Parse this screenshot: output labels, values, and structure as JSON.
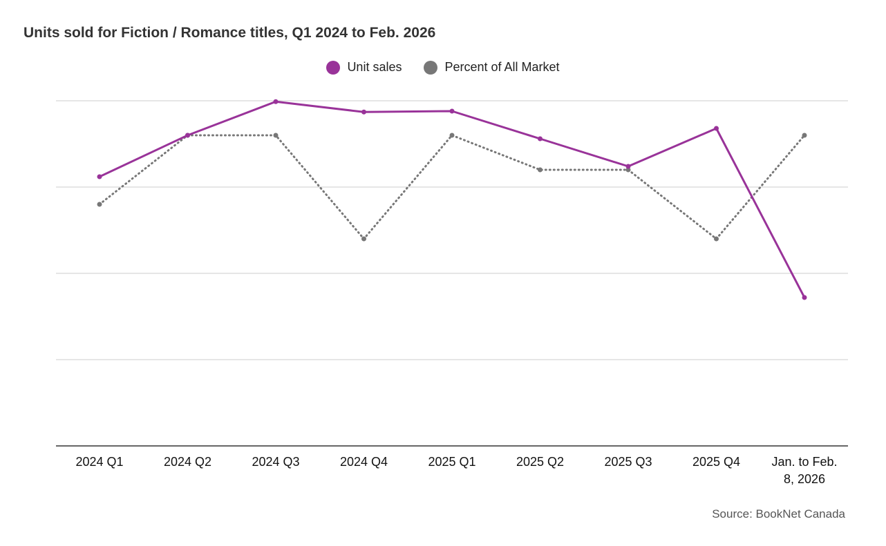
{
  "chart_data": {
    "type": "line",
    "title": "Units sold for Fiction / Romance titles, Q1 2024 to Feb. 2026",
    "categories": [
      "2024 Q1",
      "2024 Q2",
      "2024 Q3",
      "2024 Q4",
      "2025 Q1",
      "2025 Q2",
      "2025 Q3",
      "2025 Q4",
      "Jan. to Feb. 8, 2026"
    ],
    "category_lines": [
      [
        "2024 Q1"
      ],
      [
        "2024 Q2"
      ],
      [
        "2024 Q3"
      ],
      [
        "2024 Q4"
      ],
      [
        "2025 Q1"
      ],
      [
        "2025 Q2"
      ],
      [
        "2025 Q3"
      ],
      [
        "2025 Q4"
      ],
      [
        "Jan. to Feb.",
        "8, 2026"
      ]
    ],
    "ylim": [
      0,
      4
    ],
    "gridlines": [
      1,
      2,
      3,
      4
    ],
    "y_ticks_labeled": false,
    "grid": true,
    "legend_position": "top-center",
    "series": [
      {
        "name": "Unit sales",
        "color": "#993399",
        "style": "solid",
        "values": [
          3.12,
          3.6,
          3.99,
          3.87,
          3.88,
          3.56,
          3.24,
          3.68,
          1.72
        ]
      },
      {
        "name": "Percent of All Market",
        "color": "#777777",
        "style": "dotted",
        "values": [
          2.8,
          3.6,
          3.6,
          2.4,
          3.6,
          3.2,
          3.2,
          2.4,
          3.6
        ]
      }
    ]
  },
  "legend": {
    "items": [
      {
        "label": "Unit sales",
        "color": "#993399"
      },
      {
        "label": "Percent of All Market",
        "color": "#777777"
      }
    ]
  },
  "source": "Source: BookNet Canada"
}
